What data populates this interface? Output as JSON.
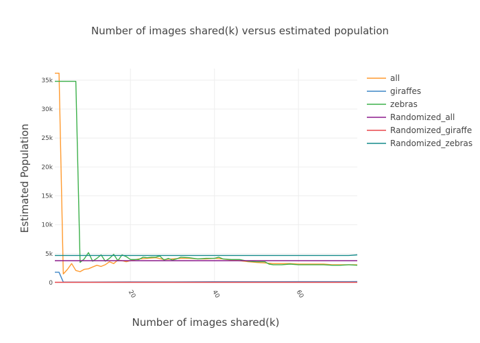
{
  "chart_data": {
    "type": "line",
    "title": "Number of images shared(k) versus estimated population",
    "xlabel": "Number of images shared(k)",
    "ylabel": "Estimated Population",
    "xlim": [
      2,
      74
    ],
    "ylim": [
      0,
      37000
    ],
    "xticks": [
      {
        "value": 20,
        "label": "20"
      },
      {
        "value": 40,
        "label": "40"
      },
      {
        "value": 60,
        "label": "60"
      }
    ],
    "yticks": [
      {
        "value": 0,
        "label": "0"
      },
      {
        "value": 5000,
        "label": "5k"
      },
      {
        "value": 10000,
        "label": "10k"
      },
      {
        "value": 15000,
        "label": "15k"
      },
      {
        "value": 20000,
        "label": "20k"
      },
      {
        "value": 25000,
        "label": "25k"
      },
      {
        "value": 30000,
        "label": "30k"
      },
      {
        "value": 35000,
        "label": "35k"
      }
    ],
    "grid": true,
    "legend_position": "right",
    "series": [
      {
        "name": "all",
        "color": "#ff9a2e",
        "points": [
          [
            2,
            36200
          ],
          [
            3,
            36200
          ],
          [
            4,
            1500
          ],
          [
            5,
            2300
          ],
          [
            6,
            3300
          ],
          [
            7,
            2100
          ],
          [
            8,
            1900
          ],
          [
            9,
            2300
          ],
          [
            10,
            2400
          ],
          [
            11,
            2700
          ],
          [
            12,
            3000
          ],
          [
            13,
            2800
          ],
          [
            14,
            3100
          ],
          [
            15,
            3600
          ],
          [
            16,
            3300
          ],
          [
            17,
            3900
          ],
          [
            18,
            3800
          ],
          [
            19,
            3600
          ],
          [
            20,
            3800
          ],
          [
            22,
            4100
          ],
          [
            24,
            4200
          ],
          [
            26,
            4300
          ],
          [
            28,
            4000
          ],
          [
            30,
            4100
          ],
          [
            32,
            4200
          ],
          [
            34,
            4200
          ],
          [
            36,
            4100
          ],
          [
            38,
            4100
          ],
          [
            40,
            4200
          ],
          [
            42,
            4100
          ],
          [
            44,
            3900
          ],
          [
            46,
            3800
          ],
          [
            48,
            3600
          ],
          [
            50,
            3500
          ],
          [
            52,
            3400
          ],
          [
            54,
            3300
          ],
          [
            56,
            3300
          ],
          [
            58,
            3300
          ],
          [
            60,
            3200
          ],
          [
            62,
            3200
          ],
          [
            64,
            3200
          ],
          [
            66,
            3200
          ],
          [
            68,
            3100
          ],
          [
            70,
            3100
          ],
          [
            72,
            3100
          ],
          [
            74,
            3100
          ]
        ]
      },
      {
        "name": "giraffes",
        "color": "#3d85c6",
        "points": [
          [
            2,
            1800
          ],
          [
            3,
            1800
          ],
          [
            4,
            100
          ],
          [
            10,
            100
          ],
          [
            20,
            120
          ],
          [
            30,
            130
          ],
          [
            40,
            150
          ],
          [
            50,
            160
          ],
          [
            60,
            170
          ],
          [
            74,
            180
          ]
        ]
      },
      {
        "name": "zebras",
        "color": "#3cb04a",
        "points": [
          [
            2,
            34800
          ],
          [
            3,
            34800
          ],
          [
            6,
            34800
          ],
          [
            7,
            34800
          ],
          [
            8,
            3500
          ],
          [
            9,
            4100
          ],
          [
            10,
            5200
          ],
          [
            11,
            3700
          ],
          [
            12,
            4200
          ],
          [
            13,
            4800
          ],
          [
            14,
            3700
          ],
          [
            15,
            4200
          ],
          [
            16,
            4900
          ],
          [
            17,
            3800
          ],
          [
            18,
            4800
          ],
          [
            19,
            4500
          ],
          [
            20,
            4000
          ],
          [
            22,
            4000
          ],
          [
            23,
            4400
          ],
          [
            24,
            4300
          ],
          [
            25,
            4400
          ],
          [
            26,
            4400
          ],
          [
            27,
            4600
          ],
          [
            28,
            3900
          ],
          [
            29,
            4200
          ],
          [
            30,
            3900
          ],
          [
            31,
            4100
          ],
          [
            32,
            4400
          ],
          [
            34,
            4300
          ],
          [
            36,
            4100
          ],
          [
            38,
            4200
          ],
          [
            40,
            4200
          ],
          [
            41,
            4400
          ],
          [
            42,
            4100
          ],
          [
            44,
            4000
          ],
          [
            46,
            4000
          ],
          [
            48,
            3700
          ],
          [
            50,
            3600
          ],
          [
            52,
            3600
          ],
          [
            53,
            3200
          ],
          [
            54,
            3100
          ],
          [
            56,
            3100
          ],
          [
            58,
            3200
          ],
          [
            60,
            3100
          ],
          [
            62,
            3100
          ],
          [
            64,
            3100
          ],
          [
            66,
            3100
          ],
          [
            68,
            3000
          ],
          [
            70,
            3000
          ],
          [
            72,
            3100
          ],
          [
            74,
            3000
          ]
        ]
      },
      {
        "name": "Randomized_all",
        "color": "#8b1a8b",
        "points": [
          [
            2,
            3800
          ],
          [
            74,
            3800
          ]
        ]
      },
      {
        "name": "Randomized_giraffe",
        "color": "#e8474b",
        "points": [
          [
            2,
            60
          ],
          [
            74,
            60
          ]
        ]
      },
      {
        "name": "Randomized_zebras",
        "color": "#138a8a",
        "points": [
          [
            2,
            4700
          ],
          [
            72,
            4700
          ],
          [
            74,
            4800
          ]
        ]
      }
    ]
  }
}
